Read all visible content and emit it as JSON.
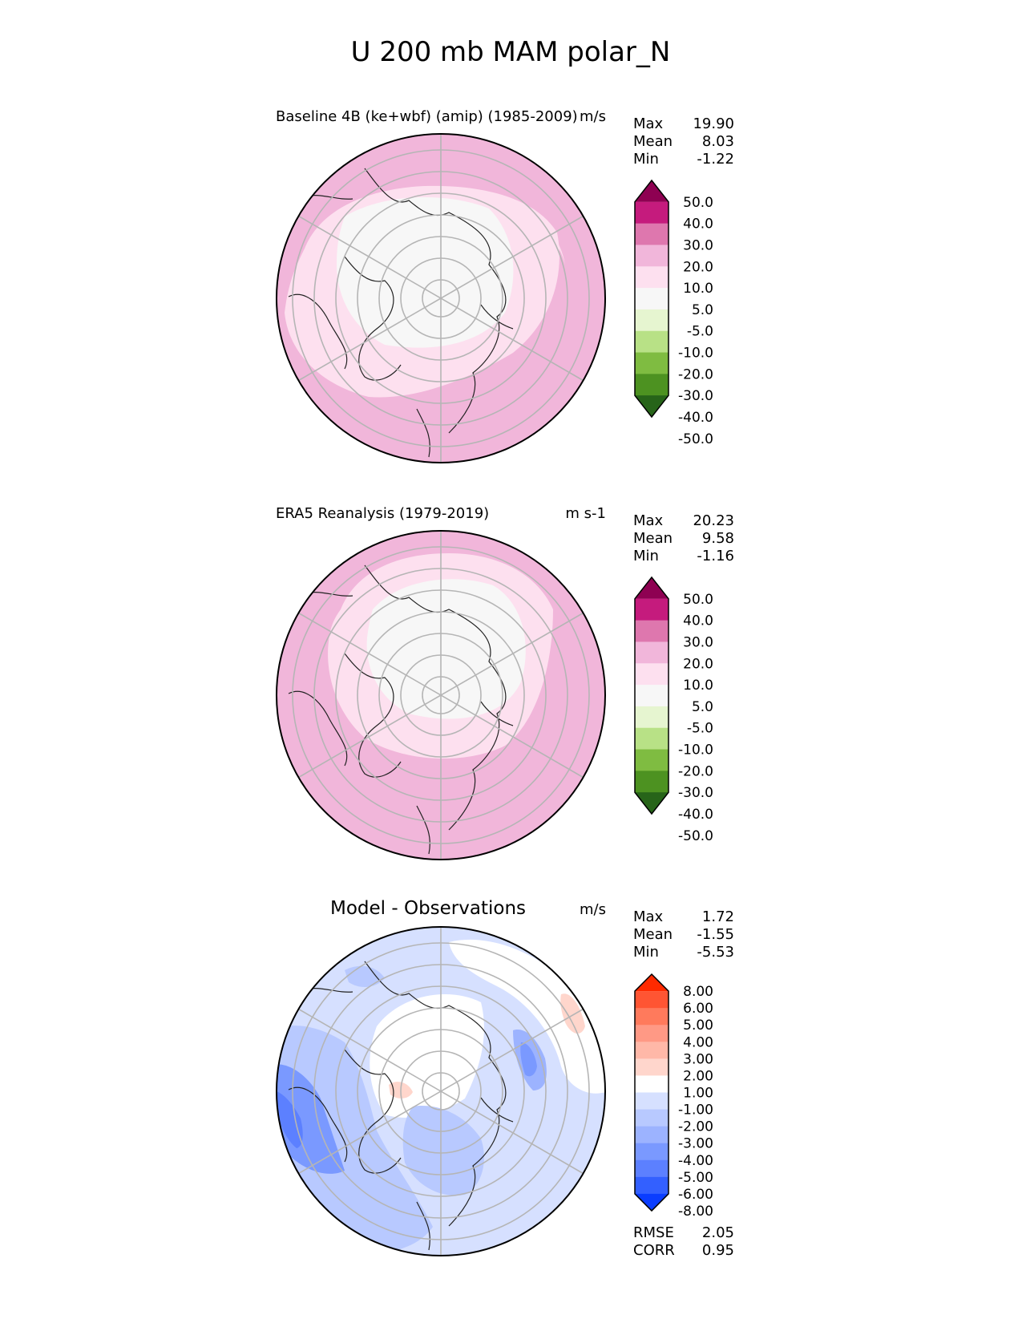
{
  "title": "U 200 mb MAM polar_N",
  "chart_data": [
    {
      "type": "heatmap",
      "title": "Baseline 4B (ke+wbf) (amip) (1985-2009)",
      "units": "m/s",
      "projection": "north polar stereographic",
      "stats": [
        {
          "label": "Max",
          "value": "19.90"
        },
        {
          "label": "Mean",
          "value": "8.03"
        },
        {
          "label": "Min",
          "value": "-1.22"
        }
      ],
      "colorbar": {
        "labels": [
          "50.0",
          "40.0",
          "30.0",
          "20.0",
          "10.0",
          "5.0",
          "-5.0",
          "-10.0",
          "-20.0",
          "-30.0",
          "-40.0",
          "-50.0"
        ],
        "colors": [
          "#8e0152",
          "#c51b7d",
          "#de77ae",
          "#f1b6da",
          "#fde0ef",
          "#f7f7f7",
          "#e6f5d0",
          "#b8e186",
          "#7fbc41",
          "#4d9221",
          "#276419"
        ],
        "extend": "both"
      }
    },
    {
      "type": "heatmap",
      "title": "ERA5 Reanalysis (1979-2019)",
      "units": "m s-1",
      "projection": "north polar stereographic",
      "stats": [
        {
          "label": "Max",
          "value": "20.23"
        },
        {
          "label": "Mean",
          "value": "9.58"
        },
        {
          "label": "Min",
          "value": "-1.16"
        }
      ],
      "colorbar": {
        "labels": [
          "50.0",
          "40.0",
          "30.0",
          "20.0",
          "10.0",
          "5.0",
          "-5.0",
          "-10.0",
          "-20.0",
          "-30.0",
          "-40.0",
          "-50.0"
        ],
        "colors": [
          "#8e0152",
          "#c51b7d",
          "#de77ae",
          "#f1b6da",
          "#fde0ef",
          "#f7f7f7",
          "#e6f5d0",
          "#b8e186",
          "#7fbc41",
          "#4d9221",
          "#276419"
        ],
        "extend": "both"
      }
    },
    {
      "type": "heatmap",
      "title": "Model - Observations",
      "units": "m/s",
      "projection": "north polar stereographic",
      "stats": [
        {
          "label": "Max",
          "value": "1.72"
        },
        {
          "label": "Mean",
          "value": "-1.55"
        },
        {
          "label": "Min",
          "value": "-5.53"
        }
      ],
      "colorbar": {
        "labels": [
          "8.00",
          "6.00",
          "5.00",
          "4.00",
          "3.00",
          "2.00",
          "1.00",
          "-1.00",
          "-2.00",
          "-3.00",
          "-4.00",
          "-5.00",
          "-6.00",
          "-8.00"
        ],
        "colors": [
          "#ff2a00",
          "#ff5533",
          "#ff7a5c",
          "#ff9985",
          "#ffb8a8",
          "#ffd6cc",
          "#ffffff",
          "#d6e0ff",
          "#b8c9ff",
          "#9cb3ff",
          "#7a99ff",
          "#5c80ff",
          "#3360ff",
          "#0a3dff"
        ],
        "extend": "both"
      },
      "footer_stats": [
        {
          "label": "RMSE",
          "value": "2.05"
        },
        {
          "label": "CORR",
          "value": "0.95"
        }
      ]
    }
  ]
}
